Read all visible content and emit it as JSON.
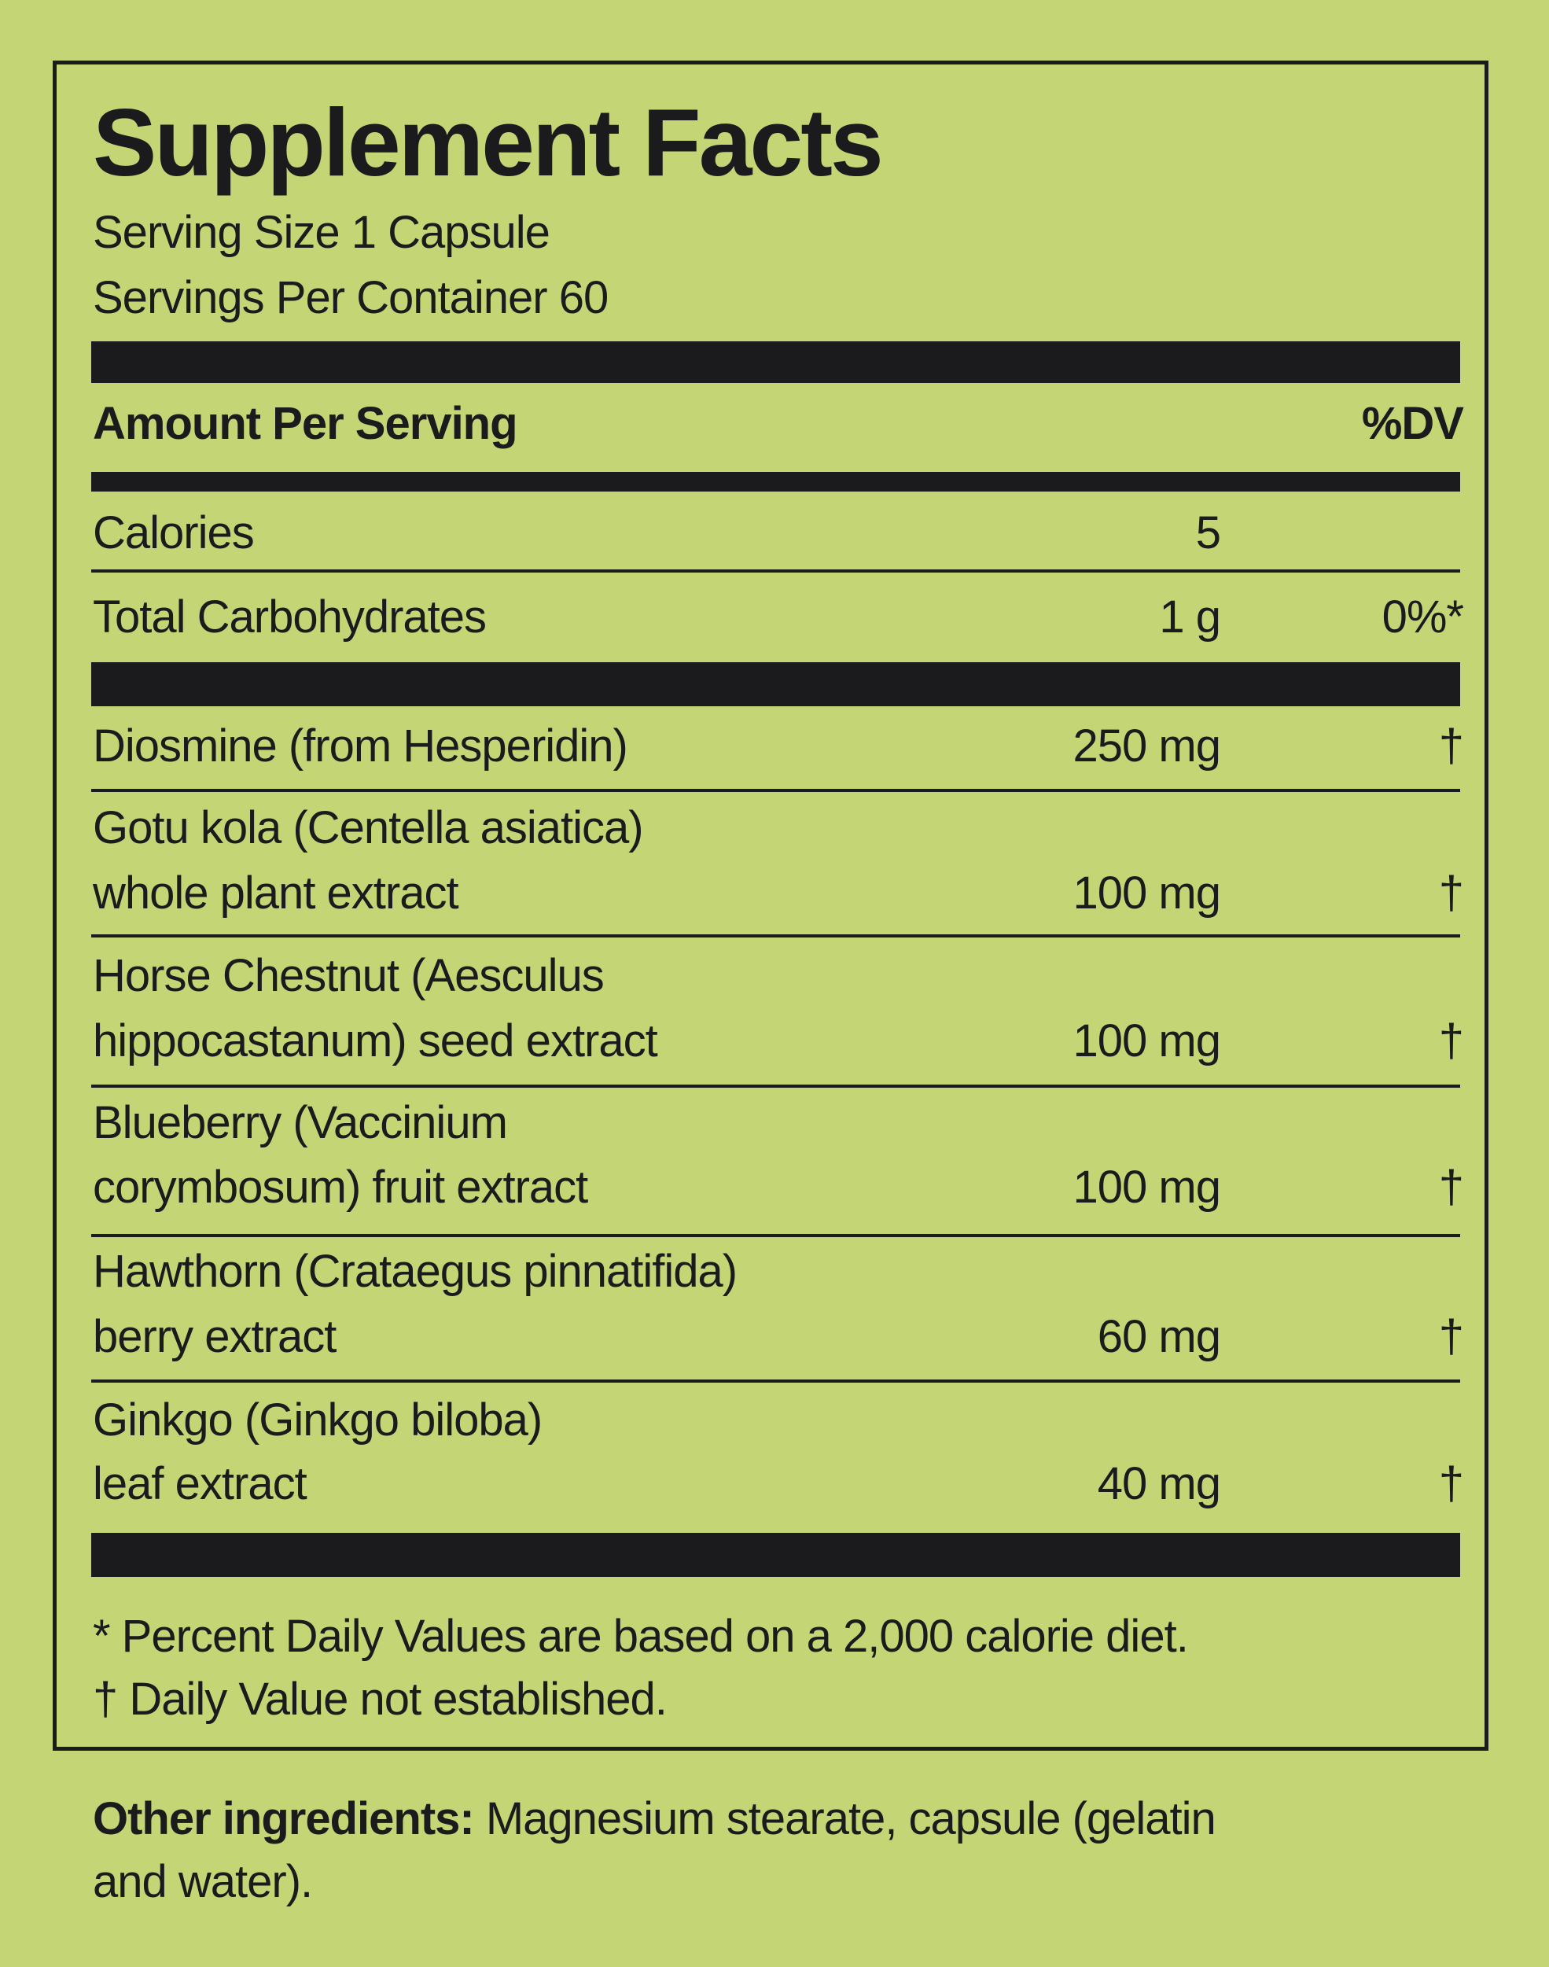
{
  "title": "Supplement Facts",
  "serving_size": "Serving Size 1 Capsule",
  "servings_per_container": "Servings Per Container 60",
  "header": {
    "amount": "Amount Per Serving",
    "dv": "%DV"
  },
  "rows": [
    {
      "name": [
        "Calories"
      ],
      "amount": "5",
      "dv": ""
    },
    {
      "name": [
        "Total Carbohydrates"
      ],
      "amount": "1 g",
      "dv": "0%*"
    },
    {
      "name": [
        "Diosmine (from Hesperidin)"
      ],
      "amount": "250 mg",
      "dv": "†"
    },
    {
      "name": [
        "Gotu kola (Centella asiatica)",
        "whole plant extract"
      ],
      "amount": "100 mg",
      "dv": "†"
    },
    {
      "name": [
        "Horse Chestnut (Aesculus",
        "hippocastanum) seed extract"
      ],
      "amount": "100 mg",
      "dv": "†"
    },
    {
      "name": [
        "Blueberry (Vaccinium",
        "corymbosum) fruit extract"
      ],
      "amount": "100 mg",
      "dv": "†"
    },
    {
      "name": [
        "Hawthorn (Crataegus pinnatifida)",
        "berry extract"
      ],
      "amount": "60 mg",
      "dv": "†"
    },
    {
      "name": [
        "Ginkgo (Ginkgo biloba)",
        "leaf extract"
      ],
      "amount": "40 mg",
      "dv": "†"
    }
  ],
  "footnotes": [
    "* Percent Daily Values are based on a 2,000 calorie diet.",
    "† Daily Value not established."
  ],
  "other_ingredients": {
    "label": "Other ingredients:",
    "text": " Magnesium stearate, capsule (gelatin",
    "text2": "and water)."
  },
  "colors": {
    "background": "#c3d575",
    "ink": "#1b1a1c"
  }
}
